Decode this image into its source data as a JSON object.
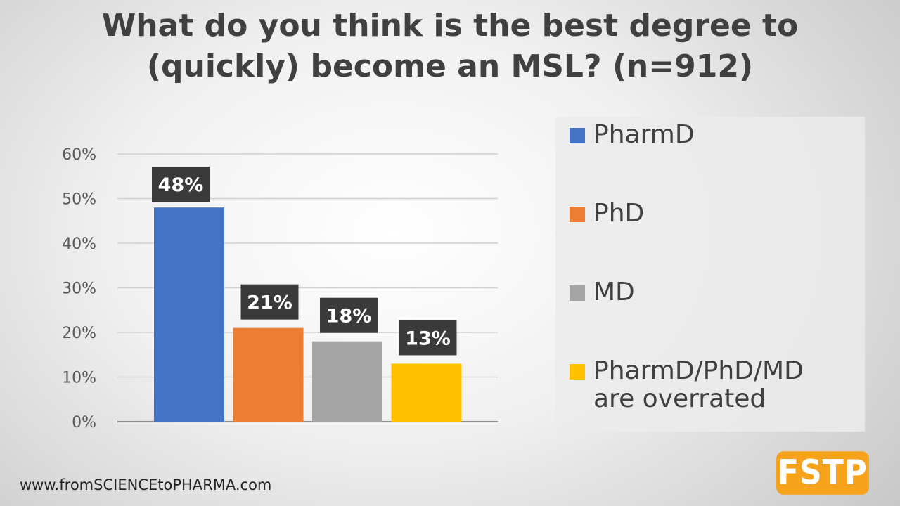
{
  "chart_data": {
    "type": "bar",
    "title_lines": [
      "What do you think is the best degree to",
      "(quickly) become an MSL? (n=912)"
    ],
    "categories": [
      "PharmD",
      "PhD",
      "MD",
      "PharmD/PhD/MD are overrated"
    ],
    "values": [
      48,
      21,
      18,
      13
    ],
    "data_labels": [
      "48%",
      "21%",
      "18%",
      "13%"
    ],
    "colors": [
      "#4472c4",
      "#ed7d31",
      "#a5a5a5",
      "#ffc000"
    ],
    "ylim": [
      0,
      60
    ],
    "yticks": [
      0,
      10,
      20,
      30,
      40,
      50,
      60
    ],
    "ytick_labels": [
      "0%",
      "10%",
      "20%",
      "30%",
      "40%",
      "50%",
      "60%"
    ],
    "grid": true,
    "legend_position": "right",
    "legend": [
      {
        "lines": [
          "PharmD"
        ]
      },
      {
        "lines": [
          "PhD"
        ]
      },
      {
        "lines": [
          "MD"
        ]
      },
      {
        "lines": [
          "PharmD/PhD/MD",
          "are overrated"
        ]
      }
    ]
  },
  "footer": "www.fromSCIENCEtoPHARMA.com",
  "logo": "FSTP"
}
